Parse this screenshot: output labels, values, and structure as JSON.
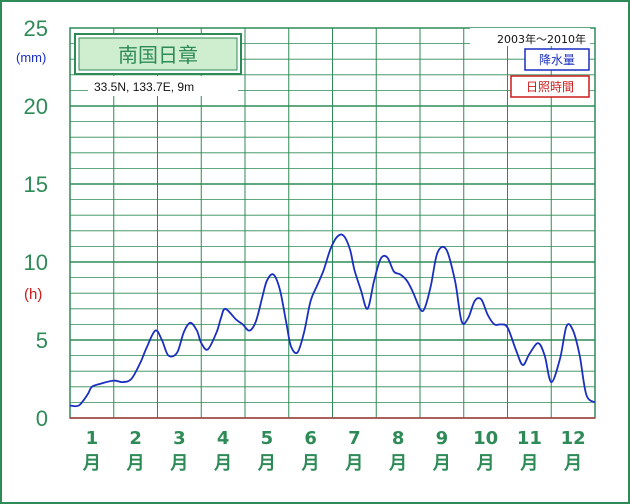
{
  "station": {
    "name": "南国日章",
    "coords": "33.5N,  133.7E,  9m",
    "period": "2003年～2010年"
  },
  "units": {
    "precip": "(mm)",
    "sun": "(h)"
  },
  "legend": {
    "precip": "降水量",
    "sun": "日照時間"
  },
  "colors": {
    "grid": "#2e8b57",
    "sun_line": "#1a2fc0",
    "precip_line": "#b04040",
    "frame": "#2e8b57"
  },
  "chart_data": {
    "type": "line",
    "ylim": [
      0,
      25
    ],
    "yticks": [
      "0",
      "5",
      "10",
      "15",
      "20",
      "25"
    ],
    "xlim": [
      0.5,
      12.5
    ],
    "months": [
      {
        "num": "1",
        "suffix": "月"
      },
      {
        "num": "2",
        "suffix": "月"
      },
      {
        "num": "3",
        "suffix": "月"
      },
      {
        "num": "4",
        "suffix": "月"
      },
      {
        "num": "5",
        "suffix": "月"
      },
      {
        "num": "6",
        "suffix": "月"
      },
      {
        "num": "7",
        "suffix": "月"
      },
      {
        "num": "8",
        "suffix": "月"
      },
      {
        "num": "9",
        "suffix": "月"
      },
      {
        "num": "10",
        "suffix": "月"
      },
      {
        "num": "11",
        "suffix": "月"
      },
      {
        "num": "12",
        "suffix": "月"
      }
    ],
    "series": [
      {
        "name": "日照時間",
        "x": [
          0.5,
          0.7,
          0.9,
          1.0,
          1.2,
          1.5,
          1.7,
          1.9,
          2.1,
          2.25,
          2.45,
          2.6,
          2.75,
          2.95,
          3.1,
          3.25,
          3.4,
          3.5,
          3.65,
          3.85,
          3.95,
          4.05,
          4.3,
          4.45,
          4.6,
          4.75,
          4.9,
          5.0,
          5.15,
          5.3,
          5.45,
          5.55,
          5.7,
          5.85,
          6.0,
          6.15,
          6.3,
          6.45,
          6.6,
          6.75,
          6.9,
          7.0,
          7.15,
          7.3,
          7.45,
          7.6,
          7.75,
          7.9,
          8.05,
          8.2,
          8.35,
          8.5,
          8.6,
          8.75,
          8.9,
          9.1,
          9.3,
          9.45,
          9.6,
          9.75,
          9.9,
          10.05,
          10.2,
          10.35,
          10.5,
          10.7,
          10.85,
          11.0,
          11.2,
          11.35,
          11.5,
          11.7,
          11.85,
          12.0,
          12.15,
          12.3,
          12.5
        ],
        "values": [
          0.8,
          0.8,
          1.5,
          2.0,
          2.2,
          2.4,
          2.3,
          2.5,
          3.5,
          4.5,
          5.6,
          5.0,
          4.0,
          4.2,
          5.5,
          6.1,
          5.6,
          4.8,
          4.4,
          5.5,
          6.4,
          7.0,
          6.3,
          6.0,
          5.6,
          6.2,
          7.8,
          8.8,
          9.2,
          8.2,
          6.0,
          4.6,
          4.2,
          5.5,
          7.5,
          8.5,
          9.5,
          10.8,
          11.6,
          11.7,
          10.8,
          9.5,
          8.2,
          7.0,
          8.8,
          10.2,
          10.3,
          9.4,
          9.2,
          8.8,
          8.0,
          7.0,
          7.0,
          8.5,
          10.6,
          10.8,
          8.8,
          6.2,
          6.4,
          7.5,
          7.6,
          6.6,
          6.0,
          6.0,
          5.8,
          4.3,
          3.4,
          4.1,
          4.8,
          4.0,
          2.3,
          3.8,
          5.9,
          5.6,
          4.0,
          1.5,
          1.0
        ]
      },
      {
        "name": "降水量",
        "x": [
          0.5,
          12.5
        ],
        "values": [
          0,
          0
        ]
      }
    ]
  }
}
